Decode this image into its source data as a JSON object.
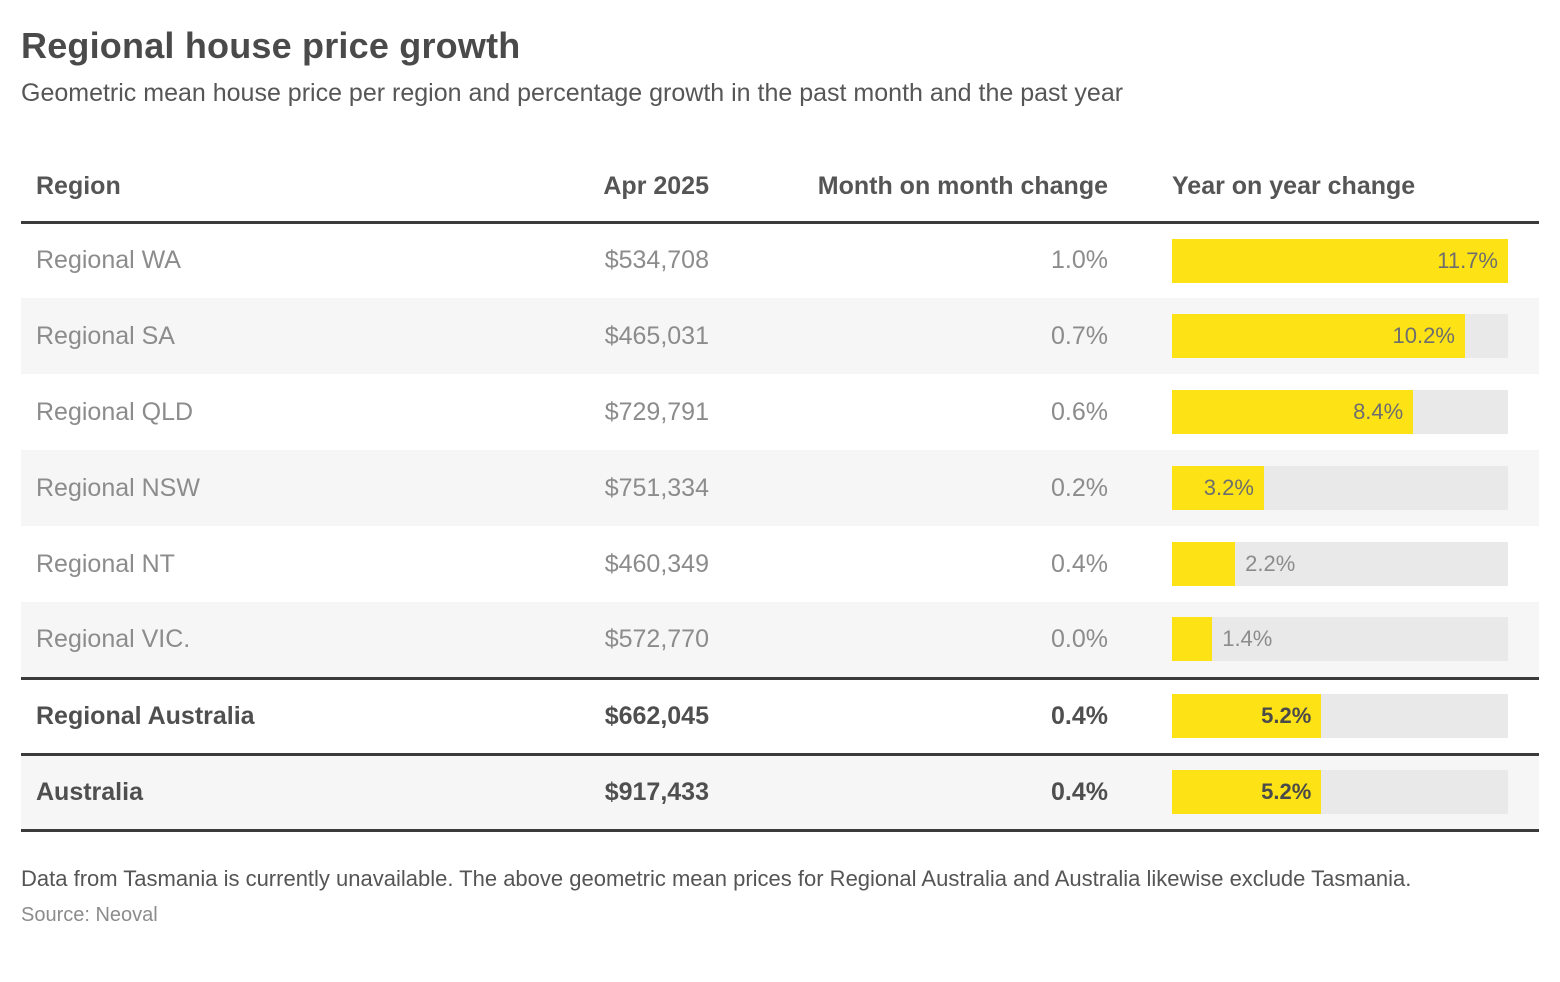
{
  "header": {
    "title": "Regional house price growth",
    "subtitle": "Geometric mean house price per region and percentage growth in the past month and the past year"
  },
  "table": {
    "columns": {
      "region": "Region",
      "price": "Apr 2025",
      "mom": "Month on month change",
      "yoy": "Year on year change"
    },
    "yoy_axis_max": 11.7,
    "rows": [
      {
        "region": "Regional WA",
        "price": "$534,708",
        "mom": "1.0%",
        "yoy": 11.7,
        "yoy_label": "11.7%",
        "total": false
      },
      {
        "region": "Regional SA",
        "price": "$465,031",
        "mom": "0.7%",
        "yoy": 10.2,
        "yoy_label": "10.2%",
        "total": false
      },
      {
        "region": "Regional QLD",
        "price": "$729,791",
        "mom": "0.6%",
        "yoy": 8.4,
        "yoy_label": "8.4%",
        "total": false
      },
      {
        "region": "Regional NSW",
        "price": "$751,334",
        "mom": "0.2%",
        "yoy": 3.2,
        "yoy_label": "3.2%",
        "total": false
      },
      {
        "region": "Regional NT",
        "price": "$460,349",
        "mom": "0.4%",
        "yoy": 2.2,
        "yoy_label": "2.2%",
        "total": false
      },
      {
        "region": "Regional VIC.",
        "price": "$572,770",
        "mom": "0.0%",
        "yoy": 1.4,
        "yoy_label": "1.4%",
        "total": false
      },
      {
        "region": "Regional Australia",
        "price": "$662,045",
        "mom": "0.4%",
        "yoy": 5.2,
        "yoy_label": "5.2%",
        "total": true
      },
      {
        "region": "Australia",
        "price": "$917,433",
        "mom": "0.4%",
        "yoy": 5.2,
        "yoy_label": "5.2%",
        "total": true
      }
    ]
  },
  "colors": {
    "bar_fill": "#fde315",
    "bar_track": "#e9e9e9",
    "row_stripe": "#f6f6f6",
    "rule": "#3b3b3b"
  },
  "footnote": "Data from Tasmania is currently unavailable. The above geometric mean prices for Regional Australia and Australia likewise exclude Tasmania.",
  "source": "Source: Neoval",
  "chart_data": {
    "type": "bar",
    "orientation": "horizontal",
    "title": "Regional house price growth",
    "subtitle": "Geometric mean house price per region and percentage growth in the past month and the past year",
    "categories": [
      "Regional WA",
      "Regional SA",
      "Regional QLD",
      "Regional NSW",
      "Regional NT",
      "Regional VIC.",
      "Regional Australia",
      "Australia"
    ],
    "series": [
      {
        "name": "Apr 2025 geometric mean price ($)",
        "values": [
          534708,
          465031,
          729791,
          751334,
          460349,
          572770,
          662045,
          917433
        ]
      },
      {
        "name": "Month on month change (%)",
        "values": [
          1.0,
          0.7,
          0.6,
          0.2,
          0.4,
          0.0,
          0.4,
          0.4
        ]
      },
      {
        "name": "Year on year change (%)",
        "values": [
          11.7,
          10.2,
          8.4,
          3.2,
          2.2,
          1.4,
          5.2,
          5.2
        ]
      }
    ],
    "bar_series": "Year on year change (%)",
    "bar_range": [
      0,
      11.7
    ],
    "grid": false,
    "legend": "none",
    "annotations": [
      "Data from Tasmania is currently unavailable. The above geometric mean prices for Regional Australia and Australia likewise exclude Tasmania.",
      "Source: Neoval"
    ]
  }
}
